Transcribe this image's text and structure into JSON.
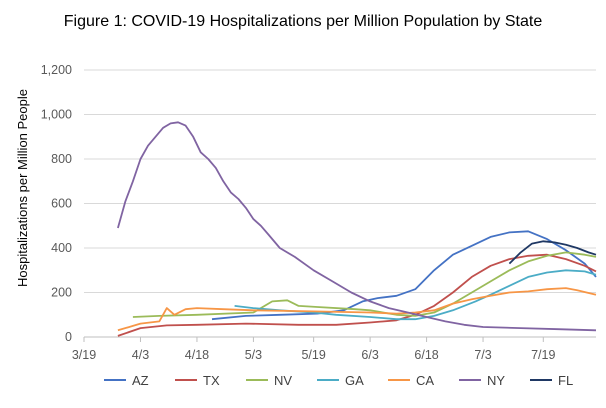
{
  "chart_data": {
    "type": "line",
    "title": "Figure 1: COVID-19 Hospitalizations per Million Population by State",
    "xlabel": "",
    "ylabel": "Hospitalizations per Million  People",
    "x_ticks": [
      "3/19",
      "4/3",
      "4/18",
      "5/3",
      "5/19",
      "6/3",
      "6/18",
      "7/3",
      "7/19"
    ],
    "xlim": [
      "3/19",
      "8/2"
    ],
    "ylim": [
      0,
      1200
    ],
    "y_ticks": [
      "0",
      "200",
      "400",
      "600",
      "800",
      "1,000",
      "1,200"
    ],
    "grid": "horizontal",
    "legend": "bottom",
    "series": [
      {
        "name": "AZ",
        "color": "#4472c4",
        "points": [
          [
            "4/22",
            80
          ],
          [
            "5/1",
            95
          ],
          [
            "5/10",
            100
          ],
          [
            "5/20",
            105
          ],
          [
            "5/27",
            120
          ],
          [
            "6/1",
            160
          ],
          [
            "6/5",
            175
          ],
          [
            "6/10",
            185
          ],
          [
            "6/15",
            215
          ],
          [
            "6/20",
            300
          ],
          [
            "6/25",
            370
          ],
          [
            "6/30",
            410
          ],
          [
            "7/5",
            450
          ],
          [
            "7/10",
            470
          ],
          [
            "7/15",
            475
          ],
          [
            "7/20",
            440
          ],
          [
            "7/25",
            390
          ],
          [
            "7/30",
            330
          ],
          [
            "8/2",
            270
          ]
        ]
      },
      {
        "name": "TX",
        "color": "#c0504d",
        "points": [
          [
            "3/28",
            5
          ],
          [
            "4/3",
            40
          ],
          [
            "4/10",
            52
          ],
          [
            "4/18",
            55
          ],
          [
            "5/1",
            60
          ],
          [
            "5/15",
            55
          ],
          [
            "5/25",
            55
          ],
          [
            "6/3",
            65
          ],
          [
            "6/10",
            75
          ],
          [
            "6/15",
            100
          ],
          [
            "6/20",
            140
          ],
          [
            "6/25",
            200
          ],
          [
            "6/30",
            270
          ],
          [
            "7/5",
            320
          ],
          [
            "7/10",
            350
          ],
          [
            "7/15",
            365
          ],
          [
            "7/20",
            370
          ],
          [
            "7/25",
            350
          ],
          [
            "7/30",
            320
          ],
          [
            "8/2",
            295
          ]
        ]
      },
      {
        "name": "NV",
        "color": "#9bbb59",
        "points": [
          [
            "4/1",
            90
          ],
          [
            "4/8",
            95
          ],
          [
            "4/18",
            100
          ],
          [
            "5/3",
            110
          ],
          [
            "5/8",
            160
          ],
          [
            "5/12",
            165
          ],
          [
            "5/15",
            140
          ],
          [
            "5/20",
            135
          ],
          [
            "5/30",
            125
          ],
          [
            "6/3",
            120
          ],
          [
            "6/10",
            100
          ],
          [
            "6/15",
            95
          ],
          [
            "6/20",
            110
          ],
          [
            "6/25",
            150
          ],
          [
            "6/30",
            200
          ],
          [
            "7/5",
            250
          ],
          [
            "7/10",
            300
          ],
          [
            "7/15",
            340
          ],
          [
            "7/20",
            365
          ],
          [
            "7/25",
            380
          ],
          [
            "7/30",
            370
          ],
          [
            "8/2",
            360
          ]
        ]
      },
      {
        "name": "GA",
        "color": "#4bacc6",
        "points": [
          [
            "4/28",
            140
          ],
          [
            "5/3",
            130
          ],
          [
            "5/10",
            120
          ],
          [
            "5/19",
            110
          ],
          [
            "5/25",
            100
          ],
          [
            "6/3",
            90
          ],
          [
            "6/10",
            80
          ],
          [
            "6/15",
            80
          ],
          [
            "6/20",
            95
          ],
          [
            "6/25",
            120
          ],
          [
            "7/1",
            160
          ],
          [
            "7/5",
            190
          ],
          [
            "7/10",
            230
          ],
          [
            "7/15",
            270
          ],
          [
            "7/20",
            290
          ],
          [
            "7/25",
            300
          ],
          [
            "7/30",
            295
          ],
          [
            "8/2",
            280
          ]
        ]
      },
      {
        "name": "CA",
        "color": "#f79646",
        "points": [
          [
            "3/28",
            30
          ],
          [
            "4/1",
            50
          ],
          [
            "4/3",
            60
          ],
          [
            "4/8",
            70
          ],
          [
            "4/10",
            130
          ],
          [
            "4/12",
            100
          ],
          [
            "4/15",
            125
          ],
          [
            "4/18",
            130
          ],
          [
            "4/25",
            125
          ],
          [
            "5/3",
            120
          ],
          [
            "5/19",
            115
          ],
          [
            "6/3",
            110
          ],
          [
            "6/10",
            105
          ],
          [
            "6/15",
            110
          ],
          [
            "6/20",
            120
          ],
          [
            "6/25",
            150
          ],
          [
            "6/30",
            170
          ],
          [
            "7/5",
            185
          ],
          [
            "7/10",
            200
          ],
          [
            "7/15",
            205
          ],
          [
            "7/20",
            215
          ],
          [
            "7/25",
            220
          ],
          [
            "7/28",
            210
          ],
          [
            "8/2",
            190
          ]
        ]
      },
      {
        "name": "NY",
        "color": "#8064a2",
        "points": [
          [
            "3/28",
            490
          ],
          [
            "3/30",
            610
          ],
          [
            "4/1",
            700
          ],
          [
            "4/3",
            800
          ],
          [
            "4/5",
            860
          ],
          [
            "4/7",
            900
          ],
          [
            "4/9",
            940
          ],
          [
            "4/11",
            960
          ],
          [
            "4/13",
            965
          ],
          [
            "4/15",
            950
          ],
          [
            "4/17",
            900
          ],
          [
            "4/19",
            830
          ],
          [
            "4/21",
            800
          ],
          [
            "4/23",
            760
          ],
          [
            "4/25",
            700
          ],
          [
            "4/27",
            650
          ],
          [
            "4/29",
            620
          ],
          [
            "5/1",
            580
          ],
          [
            "5/3",
            530
          ],
          [
            "5/5",
            500
          ],
          [
            "5/7",
            460
          ],
          [
            "5/10",
            400
          ],
          [
            "5/14",
            360
          ],
          [
            "5/19",
            300
          ],
          [
            "5/24",
            250
          ],
          [
            "5/29",
            200
          ],
          [
            "6/3",
            160
          ],
          [
            "6/8",
            130
          ],
          [
            "6/13",
            110
          ],
          [
            "6/18",
            90
          ],
          [
            "6/23",
            70
          ],
          [
            "6/28",
            55
          ],
          [
            "7/3",
            45
          ],
          [
            "7/13",
            40
          ],
          [
            "7/23",
            35
          ],
          [
            "8/2",
            30
          ]
        ]
      },
      {
        "name": "FL",
        "color": "#1f3864",
        "points": [
          [
            "7/10",
            330
          ],
          [
            "7/13",
            380
          ],
          [
            "7/16",
            420
          ],
          [
            "7/19",
            430
          ],
          [
            "7/22",
            425
          ],
          [
            "7/25",
            415
          ],
          [
            "7/28",
            400
          ],
          [
            "7/31",
            380
          ],
          [
            "8/2",
            370
          ]
        ]
      }
    ]
  }
}
